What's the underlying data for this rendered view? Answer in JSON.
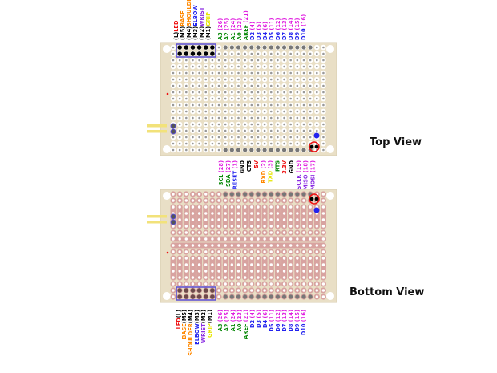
{
  "views": {
    "top": "Top View",
    "bottom": "Bottom View"
  },
  "colors": {
    "board": "#e9dfc6",
    "copper": "#d8a3a0",
    "header": "#5a4fd6",
    "wire": "#f2e27a",
    "green": "#0a8a0a",
    "magenta": "#e020e0",
    "blue": "#2222ee",
    "red": "#ee1111",
    "orange": "#ff8800",
    "yellow": "#e6e600",
    "purple": "#8a2be2",
    "black": "#000000"
  },
  "top_labels": [
    [
      {
        "t": "(L)",
        "c": "black"
      },
      {
        "t": "LED",
        "c": "red"
      }
    ],
    [
      {
        "t": "(M5)",
        "c": "black"
      },
      {
        "t": "BASE",
        "c": "orange"
      }
    ],
    [
      {
        "t": "(M4)",
        "c": "black"
      },
      {
        "t": "SHOULDER",
        "c": "orange"
      }
    ],
    [
      {
        "t": "(M3)",
        "c": "black"
      },
      {
        "t": "ELBOW",
        "c": "blue"
      }
    ],
    [
      {
        "t": "(M2)",
        "c": "black"
      },
      {
        "t": "WRIST",
        "c": "purple"
      }
    ],
    [
      {
        "t": "(M1)",
        "c": "black"
      },
      {
        "t": "GRIP",
        "c": "yellow"
      }
    ],
    [
      {
        "t": "A3 ",
        "c": "green"
      },
      {
        "t": "(26)",
        "c": "magenta"
      }
    ],
    [
      {
        "t": "A2 ",
        "c": "green"
      },
      {
        "t": "(25)",
        "c": "magenta"
      }
    ],
    [
      {
        "t": "A1 ",
        "c": "green"
      },
      {
        "t": "(24)",
        "c": "magenta"
      }
    ],
    [
      {
        "t": "A0 ",
        "c": "green"
      },
      {
        "t": "(23)",
        "c": "magenta"
      }
    ],
    [
      {
        "t": "AREF ",
        "c": "green"
      },
      {
        "t": "(21)",
        "c": "magenta"
      }
    ],
    [
      {
        "t": "D2 ",
        "c": "blue"
      },
      {
        "t": "(4)",
        "c": "magenta"
      }
    ],
    [
      {
        "t": "D3 ",
        "c": "blue"
      },
      {
        "t": "(5)",
        "c": "magenta"
      }
    ],
    [
      {
        "t": "D4 ",
        "c": "blue"
      },
      {
        "t": "(6)",
        "c": "magenta"
      }
    ],
    [
      {
        "t": "D5 ",
        "c": "blue"
      },
      {
        "t": "(11)",
        "c": "magenta"
      }
    ],
    [
      {
        "t": "D6 ",
        "c": "blue"
      },
      {
        "t": "(12)",
        "c": "magenta"
      }
    ],
    [
      {
        "t": "D7 ",
        "c": "blue"
      },
      {
        "t": "(13)",
        "c": "magenta"
      }
    ],
    [
      {
        "t": "D8 ",
        "c": "blue"
      },
      {
        "t": "(14)",
        "c": "magenta"
      }
    ],
    [
      {
        "t": "D9 ",
        "c": "blue"
      },
      {
        "t": "(15)",
        "c": "magenta"
      }
    ],
    [
      {
        "t": "D10 ",
        "c": "blue"
      },
      {
        "t": "(16)",
        "c": "magenta"
      }
    ]
  ],
  "middle_labels": [
    [
      {
        "t": "SCL ",
        "c": "green"
      },
      {
        "t": "(28)",
        "c": "magenta"
      }
    ],
    [
      {
        "t": "SDA ",
        "c": "green"
      },
      {
        "t": "(27)",
        "c": "magenta"
      }
    ],
    [
      {
        "t": "RESET ",
        "c": "blue"
      },
      {
        "t": "(1)",
        "c": "magenta"
      }
    ],
    [
      {
        "t": "GND",
        "c": "black"
      }
    ],
    [
      {
        "t": "CTS",
        "c": "black"
      }
    ],
    [
      {
        "t": "5V",
        "c": "red"
      }
    ],
    [
      {
        "t": "RXD ",
        "c": "orange"
      },
      {
        "t": "(2)",
        "c": "magenta"
      }
    ],
    [
      {
        "t": "TXD ",
        "c": "yellow"
      },
      {
        "t": "(3)",
        "c": "magenta"
      }
    ],
    [
      {
        "t": "RTS",
        "c": "green"
      }
    ],
    [
      {
        "t": "3.3V",
        "c": "red"
      }
    ],
    [
      {
        "t": "GND",
        "c": "black"
      }
    ],
    [
      {
        "t": "SCLK ",
        "c": "purple"
      },
      {
        "t": "(19)",
        "c": "magenta"
      }
    ],
    [
      {
        "t": "MISO ",
        "c": "purple"
      },
      {
        "t": "(18)",
        "c": "magenta"
      }
    ],
    [
      {
        "t": "MOSI ",
        "c": "purple"
      },
      {
        "t": "(17)",
        "c": "magenta"
      }
    ]
  ],
  "bottom_labels": [
    [
      {
        "t": "LED",
        "c": "red"
      },
      {
        "t": "(L)",
        "c": "black"
      }
    ],
    [
      {
        "t": "BASE",
        "c": "orange"
      },
      {
        "t": "(M5)",
        "c": "black"
      }
    ],
    [
      {
        "t": "SHOULDER",
        "c": "orange"
      },
      {
        "t": "(M4)",
        "c": "black"
      }
    ],
    [
      {
        "t": "ELBOW",
        "c": "blue"
      },
      {
        "t": "(M3)",
        "c": "black"
      }
    ],
    [
      {
        "t": "WRIST",
        "c": "purple"
      },
      {
        "t": "(M2)",
        "c": "black"
      }
    ],
    [
      {
        "t": "GRIP",
        "c": "yellow"
      },
      {
        "t": "(M1)",
        "c": "black"
      }
    ],
    [
      {
        "t": "A3 ",
        "c": "green"
      },
      {
        "t": "(26)",
        "c": "magenta"
      }
    ],
    [
      {
        "t": "A2 ",
        "c": "green"
      },
      {
        "t": "(25)",
        "c": "magenta"
      }
    ],
    [
      {
        "t": "A1 ",
        "c": "green"
      },
      {
        "t": "(24)",
        "c": "magenta"
      }
    ],
    [
      {
        "t": "A0 ",
        "c": "green"
      },
      {
        "t": "(23)",
        "c": "magenta"
      }
    ],
    [
      {
        "t": "AREF ",
        "c": "green"
      },
      {
        "t": "(21)",
        "c": "magenta"
      }
    ],
    [
      {
        "t": "D2 ",
        "c": "blue"
      },
      {
        "t": "(4)",
        "c": "magenta"
      }
    ],
    [
      {
        "t": "D3 ",
        "c": "blue"
      },
      {
        "t": "(5)",
        "c": "magenta"
      }
    ],
    [
      {
        "t": "D4 ",
        "c": "blue"
      },
      {
        "t": "(6)",
        "c": "magenta"
      }
    ],
    [
      {
        "t": "D5 ",
        "c": "blue"
      },
      {
        "t": "(11)",
        "c": "magenta"
      }
    ],
    [
      {
        "t": "D6 ",
        "c": "blue"
      },
      {
        "t": "(12)",
        "c": "magenta"
      }
    ],
    [
      {
        "t": "D7 ",
        "c": "blue"
      },
      {
        "t": "(13)",
        "c": "magenta"
      }
    ],
    [
      {
        "t": "D8 ",
        "c": "blue"
      },
      {
        "t": "(14)",
        "c": "magenta"
      }
    ],
    [
      {
        "t": "D9 ",
        "c": "blue"
      },
      {
        "t": "(15)",
        "c": "magenta"
      }
    ],
    [
      {
        "t": "D10 ",
        "c": "blue"
      },
      {
        "t": "(16)",
        "c": "magenta"
      }
    ]
  ]
}
